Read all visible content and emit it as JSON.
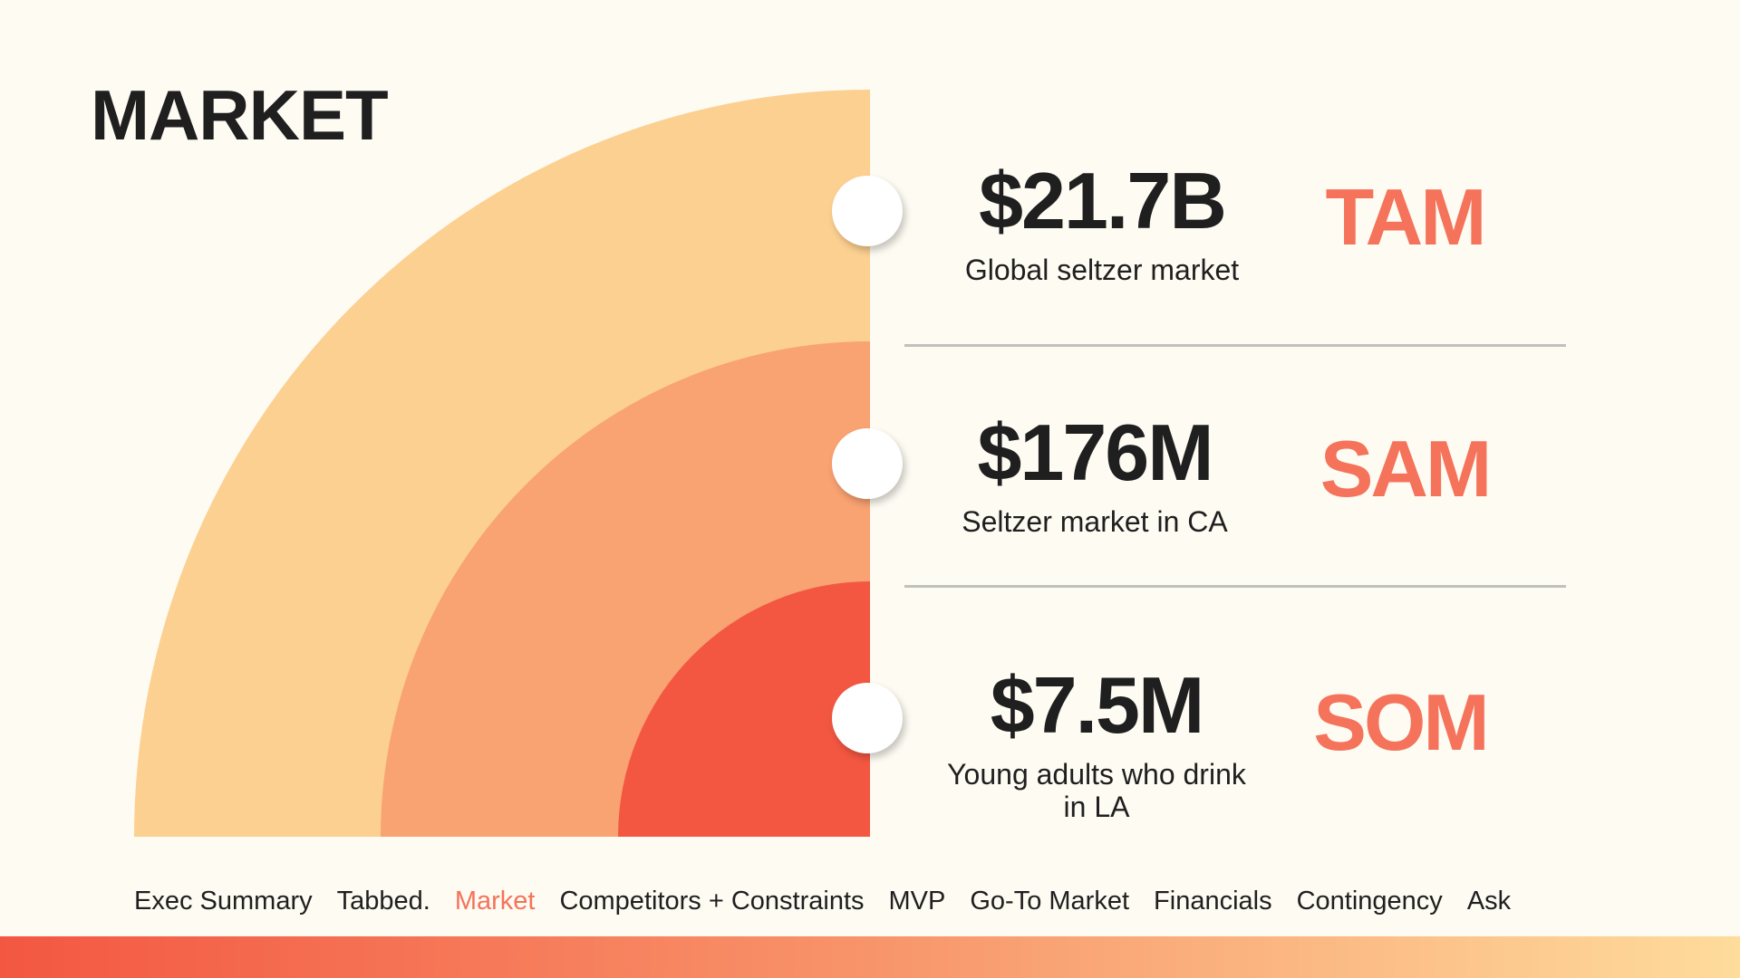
{
  "slide": {
    "title": "MARKET",
    "colors": {
      "background": "#FEFBF3",
      "tam_ring": "#FCD090",
      "sam_ring": "#F9A272",
      "som_ring": "#F35742",
      "accent": "#F4735A",
      "divider": "#BFC1BD",
      "text": "#1F1F1F"
    }
  },
  "metrics": [
    {
      "value": "$21.7B",
      "description": "Global seltzer market",
      "label": "TAM"
    },
    {
      "value": "$176M",
      "description": "Seltzer market in CA",
      "label": "SAM"
    },
    {
      "value": "$7.5M",
      "description": "Young adults who drink in LA",
      "label": "SOM"
    }
  ],
  "nav": {
    "items": [
      {
        "label": "Exec Summary",
        "active": false
      },
      {
        "label": "Tabbed.",
        "active": false
      },
      {
        "label": "Market",
        "active": true
      },
      {
        "label": "Competitors + Constraints",
        "active": false
      },
      {
        "label": "MVP",
        "active": false
      },
      {
        "label": "Go-To Market",
        "active": false
      },
      {
        "label": "Financials",
        "active": false
      },
      {
        "label": "Contingency",
        "active": false
      },
      {
        "label": "Ask",
        "active": false
      }
    ]
  }
}
